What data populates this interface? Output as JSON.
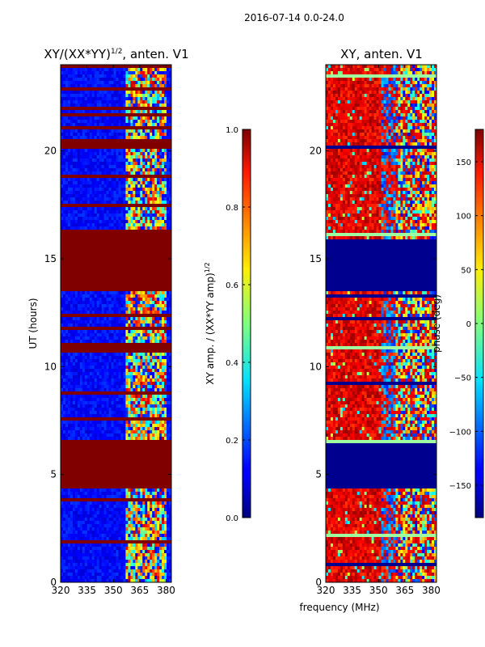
{
  "suptitle": "2016-07-14 0.0-24.0",
  "xlabel_shared": "frequency (MHz)",
  "colors": {
    "bg": "#00008b",
    "saturated": "#800000",
    "text": "#000000"
  },
  "chart_data": [
    {
      "type": "heatmap",
      "title": "XY/(XX*YY)",
      "title_superscript": "1/2",
      "title_suffix": ", anten. V1",
      "xlabel": "",
      "ylabel": "UT (hours)",
      "xlim": [
        320,
        383
      ],
      "ylim": [
        0,
        24
      ],
      "xticks": [
        320,
        335,
        350,
        365,
        380
      ],
      "yticks": [
        0,
        5,
        10,
        15,
        20
      ],
      "saturated_bands_hours": [
        [
          4.35,
          6.45
        ],
        [
          13.5,
          16.0
        ],
        [
          16.1,
          16.35
        ],
        [
          20.15,
          20.55
        ]
      ],
      "colorbar": {
        "label": "XY amp. / (XX*YY amp)",
        "label_superscript": "1/2",
        "range": [
          0.0,
          1.0
        ],
        "ticks": [
          "0.0",
          "0.2",
          "0.4",
          "0.6",
          "0.8",
          "1.0"
        ]
      }
    },
    {
      "type": "heatmap",
      "title": "XY, anten. V1",
      "xlabel": "frequency (MHz)",
      "ylabel": "",
      "xlim": [
        320,
        383
      ],
      "ylim": [
        0,
        24
      ],
      "xticks": [
        320,
        335,
        350,
        365,
        380
      ],
      "yticks": [
        0,
        5,
        10,
        15,
        20
      ],
      "flat_bands_hours": [
        [
          4.35,
          6.45
        ],
        [
          13.5,
          15.95
        ]
      ],
      "colorbar": {
        "label": "phase (deg)",
        "range": [
          -180,
          180
        ],
        "ticks": [
          "-150",
          "-100",
          "-50",
          "0",
          "50",
          "100",
          "150"
        ]
      }
    }
  ]
}
